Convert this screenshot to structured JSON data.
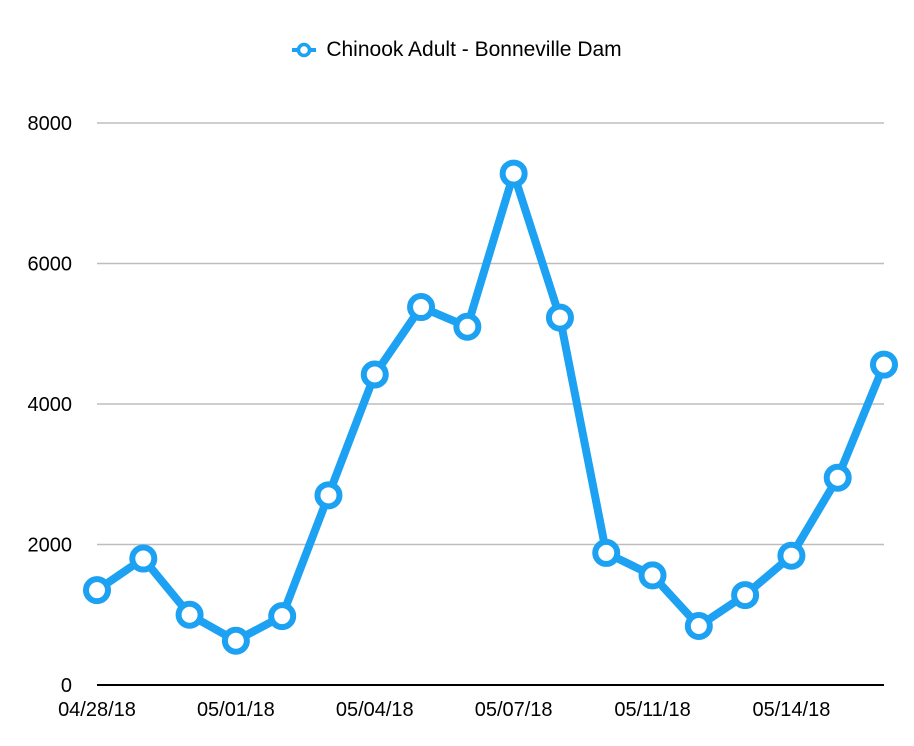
{
  "chart_data": {
    "type": "line",
    "legend_position": "top-center",
    "grid": true,
    "colors": {
      "series": "#1da1f2",
      "grid": "#bdbdbd",
      "axis": "#000000"
    },
    "ylim": [
      0,
      8000
    ],
    "yticks": [
      "0",
      "2000",
      "4000",
      "6000",
      "8000"
    ],
    "x": [
      "04/28/18",
      "04/29/18",
      "04/30/18",
      "05/01/18",
      "05/02/18",
      "05/03/18",
      "05/04/18",
      "05/05/18",
      "05/06/18",
      "05/07/18",
      "05/08/18",
      "05/09/18",
      "05/11/18",
      "05/12/18",
      "05/13/18",
      "05/14/18",
      "05/15/18",
      "05/16/18"
    ],
    "xtick_labels": [
      "04/28/18",
      "05/01/18",
      "05/04/18",
      "05/07/18",
      "05/11/18",
      "05/14/18"
    ],
    "series": [
      {
        "name": "Chinook Adult - Bonneville Dam",
        "values": [
          1350,
          1800,
          1000,
          630,
          980,
          2700,
          4420,
          5380,
          5100,
          7280,
          5230,
          1880,
          1560,
          840,
          1280,
          1840,
          2950,
          4560
        ]
      }
    ]
  }
}
